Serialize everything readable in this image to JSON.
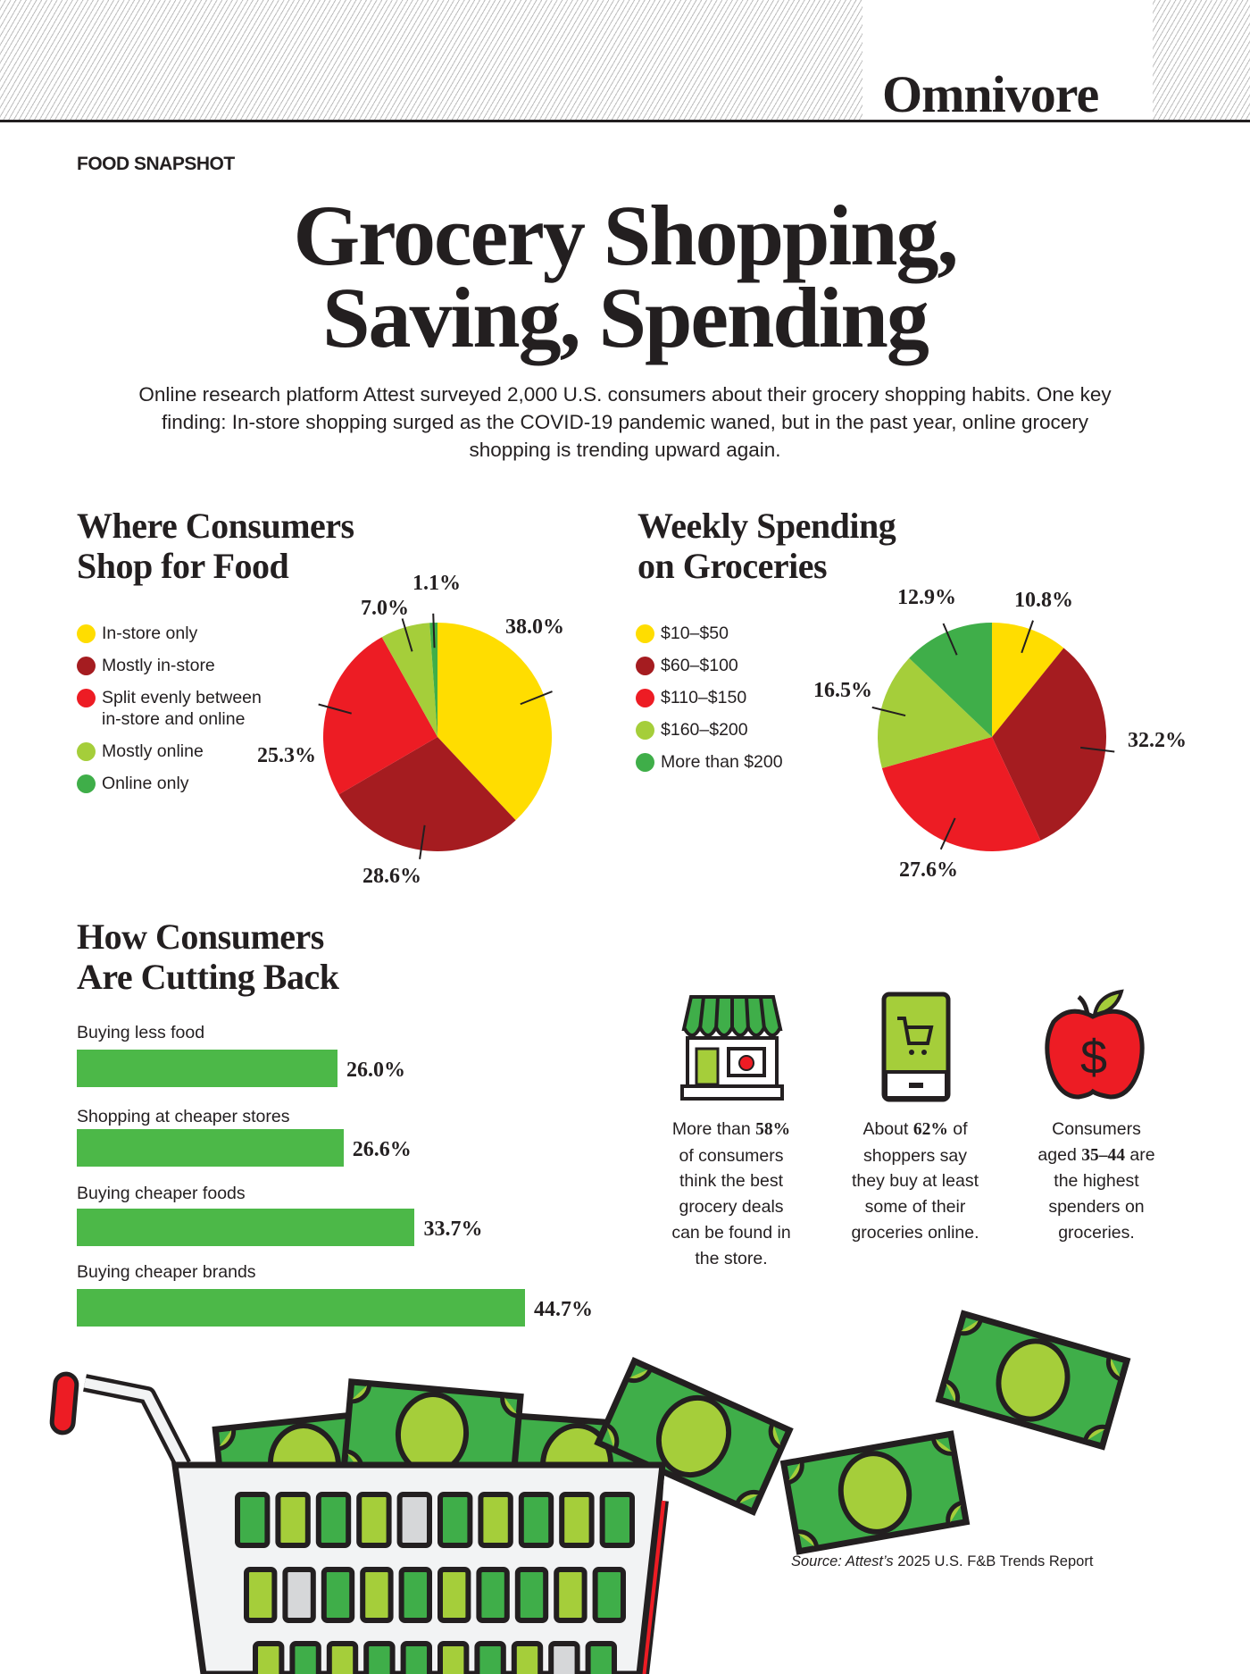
{
  "masthead": {
    "brand": "Omnivore"
  },
  "kicker": "FOOD SNAPSHOT",
  "title": {
    "line1": "Grocery Shopping,",
    "line2": "Saving, Spending"
  },
  "intro": "Online research platform Attest surveyed 2,000 U.S. consumers about their grocery shopping habits. One key finding: In-store shopping surged as the COVID-19 pandemic waned, but in the past year, online grocery shopping is trending upward again.",
  "colors": {
    "yellow": "#FFDD00",
    "dark_red": "#A51C20",
    "red": "#ED1C24",
    "light_green": "#A5CE3A",
    "green": "#3FAE49",
    "bar_green": "#4CB848"
  },
  "chart_data": [
    {
      "type": "pie",
      "title": "Where Consumers Shop for Food",
      "title_lines": [
        "Where Consumers",
        "Shop for Food"
      ],
      "legend": "left",
      "categories": [
        "In-store only",
        "Mostly in-store",
        "Split evenly between in-store and online",
        "Mostly online",
        "Online only"
      ],
      "legend_lines": [
        [
          "In-store only"
        ],
        [
          "Mostly in-store"
        ],
        [
          "Split evenly between",
          "in-store and online"
        ],
        [
          "Mostly online"
        ],
        [
          "Online only"
        ]
      ],
      "values": [
        38.0,
        28.6,
        25.3,
        7.0,
        1.1
      ],
      "labels": [
        "38.0%",
        "28.6%",
        "25.3%",
        "7.0%",
        "1.1%"
      ],
      "colors": [
        "#FFDD00",
        "#A51C20",
        "#ED1C24",
        "#A5CE3A",
        "#3FAE49"
      ]
    },
    {
      "type": "pie",
      "title": "Weekly Spending on Groceries",
      "title_lines": [
        "Weekly Spending",
        "on Groceries"
      ],
      "legend": "left",
      "categories": [
        "$10–$50",
        "$60–$100",
        "$110–$150",
        "$160–$200",
        "More than $200"
      ],
      "legend_lines": [
        [
          "$10–$50"
        ],
        [
          "$60–$100"
        ],
        [
          "$110–$150"
        ],
        [
          "$160–$200"
        ],
        [
          "More than $200"
        ]
      ],
      "values": [
        10.8,
        32.2,
        27.6,
        16.5,
        12.9
      ],
      "labels": [
        "10.8%",
        "32.2%",
        "27.6%",
        "16.5%",
        "12.9%"
      ],
      "colors": [
        "#FFDD00",
        "#A51C20",
        "#ED1C24",
        "#A5CE3A",
        "#3FAE49"
      ]
    },
    {
      "type": "bar",
      "orientation": "horizontal",
      "title": "How Consumers Are Cutting Back",
      "title_lines": [
        "How Consumers",
        "Are Cutting Back"
      ],
      "categories": [
        "Buying less food",
        "Shopping at cheaper stores",
        "Buying cheaper foods",
        "Buying cheaper brands"
      ],
      "values": [
        26.0,
        26.6,
        33.7,
        44.7
      ],
      "labels": [
        "26.0%",
        "26.6%",
        "33.7%",
        "44.7%"
      ],
      "color": "#4CB848"
    }
  ],
  "facts": [
    {
      "icon": "storefront-icon",
      "pre": "More than ",
      "bold": "58%",
      "post": " of consumers think the best grocery deals can be found in the store.",
      "lines": [
        [
          "More than ",
          "58%",
          ""
        ],
        [
          "of consumers"
        ],
        [
          "think the best"
        ],
        [
          "grocery deals"
        ],
        [
          "can be found in"
        ],
        [
          "the store."
        ]
      ]
    },
    {
      "icon": "phone-cart-icon",
      "lines": [
        [
          "About ",
          "62%",
          " of"
        ],
        [
          "shoppers say"
        ],
        [
          "they buy at least"
        ],
        [
          "some of their"
        ],
        [
          "groceries online."
        ]
      ]
    },
    {
      "icon": "apple-dollar-icon",
      "lines": [
        [
          "Consumers"
        ],
        [
          "aged ",
          "35–44",
          " are"
        ],
        [
          "the highest"
        ],
        [
          "spenders on"
        ],
        [
          "groceries."
        ]
      ]
    }
  ],
  "source": {
    "prefix": "Source: Attest’s",
    "rest": " 2025 U.S. F&B Trends Report"
  }
}
